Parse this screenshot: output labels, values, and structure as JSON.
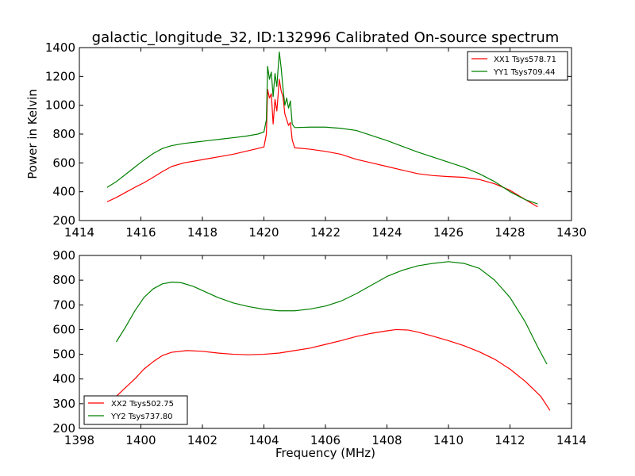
{
  "figure": {
    "title": "galactic_longitude_32, ID:132996 Calibrated On-source spectrum"
  },
  "chart_data": [
    {
      "type": "line",
      "ylabel": "Power in Kelvin",
      "xlabel": "",
      "xlim": [
        1414,
        1430
      ],
      "ylim": [
        200,
        1400
      ],
      "xticks": [
        1414,
        1416,
        1418,
        1420,
        1422,
        1424,
        1426,
        1428,
        1430
      ],
      "yticks": [
        200,
        400,
        600,
        800,
        1000,
        1200,
        1400
      ],
      "legend_position": "top-right",
      "grid": false,
      "series": [
        {
          "name": "XX1 Tsys578.71",
          "color": "#ff0000",
          "points": [
            [
              1414.9,
              330
            ],
            [
              1415.2,
              360
            ],
            [
              1415.5,
              395
            ],
            [
              1415.8,
              430
            ],
            [
              1416.1,
              462
            ],
            [
              1416.4,
              500
            ],
            [
              1416.7,
              540
            ],
            [
              1417.0,
              575
            ],
            [
              1417.4,
              600
            ],
            [
              1417.8,
              615
            ],
            [
              1418.2,
              630
            ],
            [
              1418.6,
              645
            ],
            [
              1419.0,
              660
            ],
            [
              1419.4,
              680
            ],
            [
              1419.8,
              700
            ],
            [
              1420.0,
              710
            ],
            [
              1420.08,
              800
            ],
            [
              1420.12,
              1110
            ],
            [
              1420.18,
              1050
            ],
            [
              1420.24,
              1080
            ],
            [
              1420.3,
              870
            ],
            [
              1420.36,
              1040
            ],
            [
              1420.42,
              960
            ],
            [
              1420.5,
              1180
            ],
            [
              1420.56,
              1100
            ],
            [
              1420.62,
              1060
            ],
            [
              1420.68,
              940
            ],
            [
              1420.74,
              900
            ],
            [
              1420.8,
              860
            ],
            [
              1420.86,
              880
            ],
            [
              1420.92,
              760
            ],
            [
              1421.0,
              705
            ],
            [
              1421.5,
              695
            ],
            [
              1422.0,
              680
            ],
            [
              1422.5,
              660
            ],
            [
              1423.0,
              625
            ],
            [
              1423.5,
              600
            ],
            [
              1424.0,
              575
            ],
            [
              1424.5,
              550
            ],
            [
              1425.0,
              525
            ],
            [
              1425.5,
              512
            ],
            [
              1426.0,
              505
            ],
            [
              1426.5,
              500
            ],
            [
              1427.0,
              485
            ],
            [
              1427.5,
              455
            ],
            [
              1428.0,
              410
            ],
            [
              1428.5,
              345
            ],
            [
              1428.9,
              295
            ]
          ]
        },
        {
          "name": "YY1 Tsys709.44",
          "color": "#008000",
          "points": [
            [
              1414.9,
              430
            ],
            [
              1415.2,
              470
            ],
            [
              1415.5,
              520
            ],
            [
              1415.8,
              570
            ],
            [
              1416.1,
              620
            ],
            [
              1416.4,
              665
            ],
            [
              1416.7,
              700
            ],
            [
              1417.0,
              720
            ],
            [
              1417.4,
              735
            ],
            [
              1417.8,
              745
            ],
            [
              1418.2,
              755
            ],
            [
              1418.6,
              765
            ],
            [
              1419.0,
              775
            ],
            [
              1419.4,
              785
            ],
            [
              1419.8,
              800
            ],
            [
              1420.0,
              815
            ],
            [
              1420.08,
              900
            ],
            [
              1420.12,
              1270
            ],
            [
              1420.18,
              1180
            ],
            [
              1420.24,
              1230
            ],
            [
              1420.3,
              1060
            ],
            [
              1420.36,
              1220
            ],
            [
              1420.42,
              1130
            ],
            [
              1420.5,
              1370
            ],
            [
              1420.56,
              1260
            ],
            [
              1420.62,
              1120
            ],
            [
              1420.68,
              1000
            ],
            [
              1420.74,
              1050
            ],
            [
              1420.8,
              980
            ],
            [
              1420.86,
              1030
            ],
            [
              1420.92,
              870
            ],
            [
              1421.0,
              845
            ],
            [
              1421.5,
              848
            ],
            [
              1422.0,
              848
            ],
            [
              1422.5,
              840
            ],
            [
              1423.0,
              825
            ],
            [
              1423.5,
              790
            ],
            [
              1424.0,
              755
            ],
            [
              1424.5,
              715
            ],
            [
              1425.0,
              675
            ],
            [
              1425.5,
              640
            ],
            [
              1426.0,
              605
            ],
            [
              1426.5,
              570
            ],
            [
              1427.0,
              525
            ],
            [
              1427.5,
              470
            ],
            [
              1428.0,
              400
            ],
            [
              1428.5,
              345
            ],
            [
              1428.9,
              315
            ]
          ]
        }
      ]
    },
    {
      "type": "line",
      "ylabel": "",
      "xlabel": "Frequency (MHz)",
      "xlim": [
        1398,
        1414
      ],
      "ylim": [
        200,
        900
      ],
      "xticks": [
        1398,
        1400,
        1402,
        1404,
        1406,
        1408,
        1410,
        1412,
        1414
      ],
      "yticks": [
        200,
        300,
        400,
        500,
        600,
        700,
        800,
        900
      ],
      "legend_position": "bottom-left",
      "grid": false,
      "series": [
        {
          "name": "XX2 Tsys502.75",
          "color": "#ff0000",
          "points": [
            [
              1399.2,
              330
            ],
            [
              1399.5,
              365
            ],
            [
              1399.8,
              400
            ],
            [
              1400.1,
              440
            ],
            [
              1400.4,
              470
            ],
            [
              1400.7,
              495
            ],
            [
              1401.0,
              508
            ],
            [
              1401.5,
              515
            ],
            [
              1402.0,
              512
            ],
            [
              1402.5,
              505
            ],
            [
              1403.0,
              500
            ],
            [
              1403.5,
              498
            ],
            [
              1404.0,
              500
            ],
            [
              1404.5,
              505
            ],
            [
              1405.0,
              515
            ],
            [
              1405.5,
              525
            ],
            [
              1406.0,
              540
            ],
            [
              1406.5,
              555
            ],
            [
              1407.0,
              572
            ],
            [
              1407.5,
              585
            ],
            [
              1408.0,
              595
            ],
            [
              1408.3,
              600
            ],
            [
              1408.7,
              598
            ],
            [
              1409.0,
              590
            ],
            [
              1409.5,
              573
            ],
            [
              1410.0,
              555
            ],
            [
              1410.5,
              535
            ],
            [
              1411.0,
              510
            ],
            [
              1411.5,
              480
            ],
            [
              1412.0,
              440
            ],
            [
              1412.5,
              390
            ],
            [
              1413.0,
              330
            ],
            [
              1413.3,
              273
            ]
          ]
        },
        {
          "name": "YY2 Tsys737.80",
          "color": "#008000",
          "points": [
            [
              1399.2,
              550
            ],
            [
              1399.5,
              610
            ],
            [
              1399.8,
              675
            ],
            [
              1400.1,
              730
            ],
            [
              1400.4,
              765
            ],
            [
              1400.7,
              785
            ],
            [
              1401.0,
              792
            ],
            [
              1401.3,
              790
            ],
            [
              1401.7,
              775
            ],
            [
              1402.0,
              758
            ],
            [
              1402.5,
              730
            ],
            [
              1403.0,
              708
            ],
            [
              1403.5,
              693
            ],
            [
              1404.0,
              682
            ],
            [
              1404.5,
              676
            ],
            [
              1405.0,
              676
            ],
            [
              1405.5,
              683
            ],
            [
              1406.0,
              695
            ],
            [
              1406.5,
              715
            ],
            [
              1407.0,
              745
            ],
            [
              1407.5,
              780
            ],
            [
              1408.0,
              815
            ],
            [
              1408.5,
              840
            ],
            [
              1409.0,
              858
            ],
            [
              1409.5,
              868
            ],
            [
              1410.0,
              875
            ],
            [
              1410.5,
              868
            ],
            [
              1411.0,
              848
            ],
            [
              1411.5,
              800
            ],
            [
              1412.0,
              730
            ],
            [
              1412.5,
              630
            ],
            [
              1412.9,
              530
            ],
            [
              1413.2,
              460
            ]
          ]
        }
      ]
    }
  ]
}
